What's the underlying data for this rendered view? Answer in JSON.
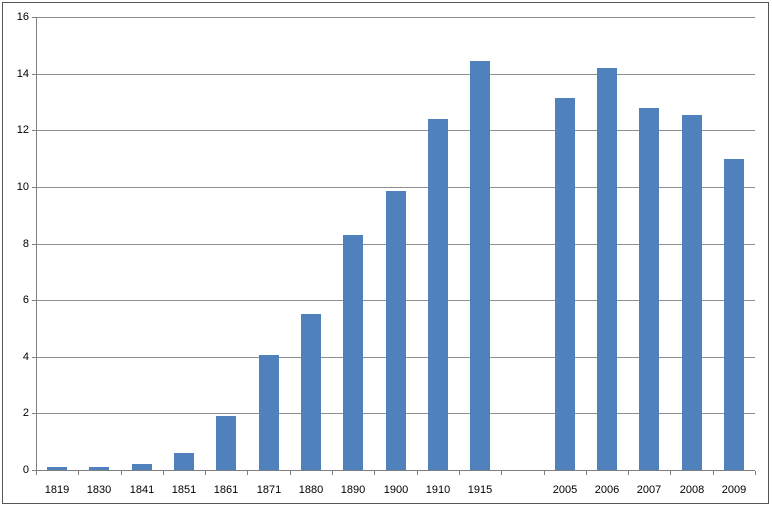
{
  "chart_data": {
    "type": "bar",
    "title": "",
    "xlabel": "",
    "ylabel": "",
    "categories": [
      "1819",
      "1830",
      "1841",
      "1851",
      "1861",
      "1871",
      "1880",
      "1890",
      "1900",
      "1910",
      "1915",
      "",
      "2005",
      "2006",
      "2007",
      "2008",
      "2009"
    ],
    "values": [
      0.1,
      0.12,
      0.22,
      0.6,
      1.9,
      4.05,
      5.5,
      8.3,
      9.85,
      12.4,
      14.45,
      null,
      13.15,
      14.2,
      12.8,
      12.55,
      11.0
    ],
    "ylim": [
      0,
      16
    ],
    "yticks": [
      0,
      2,
      4,
      6,
      8,
      10,
      12,
      14,
      16
    ],
    "grid": "horizontal-only",
    "legend": "none",
    "bar_color": "#4F81BD",
    "gridline_color": "#8f8f8f",
    "axis_color": "#7f7f7f",
    "text_color": "#000000",
    "background_color": "#ffffff",
    "frame_border_color": "#565656"
  }
}
